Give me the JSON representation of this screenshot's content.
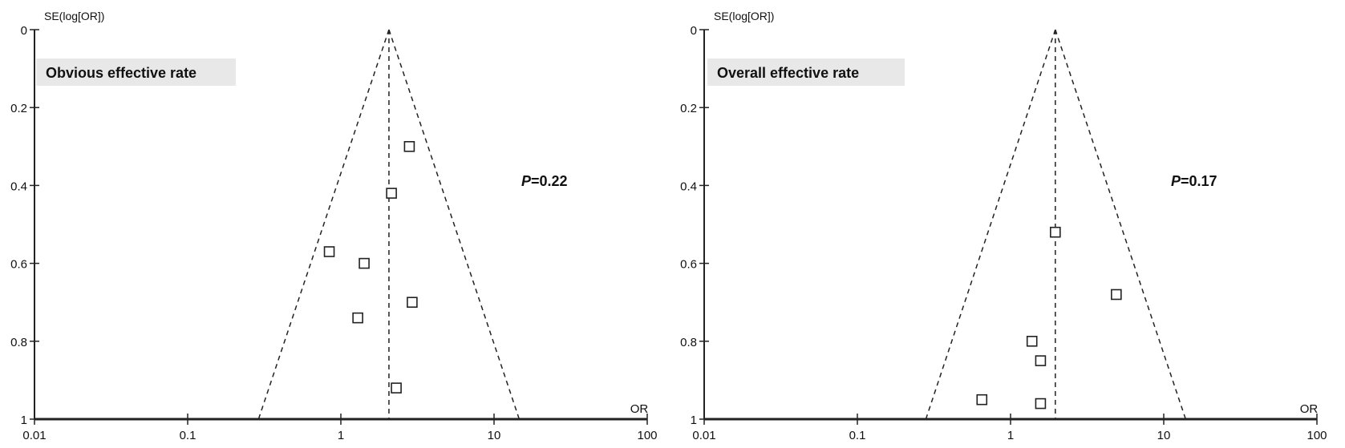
{
  "chart_data": [
    {
      "type": "scatter",
      "subtype": "funnel plot",
      "title": "Obvious effective rate",
      "annotation": {
        "label_italic": "P",
        "label_rest": "=0.22"
      },
      "xlabel": "OR",
      "ylabel": "SE(log[OR])",
      "x_scale": "log",
      "xlim": [
        0.01,
        100
      ],
      "ylim": [
        0,
        1
      ],
      "y_inverted": true,
      "x_ticks": [
        "0.01",
        "0.1",
        "1",
        "10",
        "100"
      ],
      "y_ticks": [
        "0",
        "0.2",
        "0.4",
        "0.6",
        "0.8",
        "1"
      ],
      "pooled_or": 2.06,
      "funnel_bottom": [
        0.29,
        14.6
      ],
      "points": [
        {
          "or": 2.8,
          "se": 0.3
        },
        {
          "or": 2.14,
          "se": 0.42
        },
        {
          "or": 0.84,
          "se": 0.57
        },
        {
          "or": 1.42,
          "se": 0.6
        },
        {
          "or": 2.92,
          "se": 0.7
        },
        {
          "or": 1.29,
          "se": 0.74
        },
        {
          "or": 2.3,
          "se": 0.92
        }
      ]
    },
    {
      "type": "scatter",
      "subtype": "funnel plot",
      "title": "Overall effective rate",
      "annotation": {
        "label_italic": "P",
        "label_rest": "=0.17"
      },
      "xlabel": "OR",
      "ylabel": "SE(log[OR])",
      "x_scale": "log",
      "xlim": [
        0.01,
        100
      ],
      "ylim": [
        0,
        1
      ],
      "y_inverted": true,
      "x_ticks": [
        "0.01",
        "0.1",
        "1",
        "10",
        "100"
      ],
      "y_ticks": [
        "0",
        "0.2",
        "0.4",
        "0.6",
        "0.8",
        "1"
      ],
      "pooled_or": 1.96,
      "funnel_bottom": [
        0.28,
        13.9
      ],
      "points": [
        {
          "or": 1.96,
          "se": 0.52
        },
        {
          "or": 4.9,
          "se": 0.68
        },
        {
          "or": 1.38,
          "se": 0.8
        },
        {
          "or": 1.57,
          "se": 0.85
        },
        {
          "or": 0.65,
          "se": 0.95
        },
        {
          "or": 1.57,
          "se": 0.96
        }
      ]
    }
  ]
}
